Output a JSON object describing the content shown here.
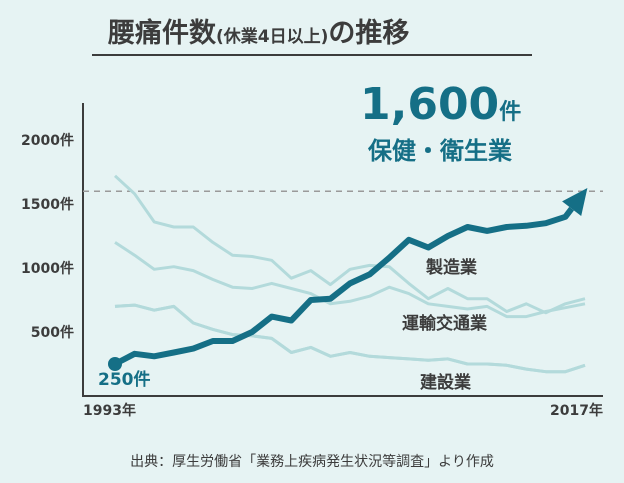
{
  "colors": {
    "background": "#e6f3f3",
    "highlight": "#156f86",
    "other_series": "#b3dadb",
    "axis": "#3c3c3c",
    "text": "#3c3c3c",
    "dash": "#9a9a9a",
    "title_underline": "#3c3c3c"
  },
  "header": {
    "title_main": "腰痛件数",
    "title_sub": "(休業4日以上)",
    "title_end": "の推移"
  },
  "highlight": {
    "value": "1,600",
    "unit": "件",
    "industry": "保健・衛生業",
    "start_label": "250件"
  },
  "footer": {
    "source": "出典：厚生労働省「業務上疾病発生状況等調査」より作成"
  },
  "chart_data": {
    "type": "line",
    "title": "腰痛件数(休業4日以上)の推移",
    "x": [
      1993,
      1994,
      1995,
      1996,
      1997,
      1998,
      1999,
      2000,
      2001,
      2002,
      2003,
      2004,
      2005,
      2006,
      2007,
      2008,
      2009,
      2010,
      2011,
      2012,
      2013,
      2014,
      2015,
      2016,
      2017
    ],
    "x_tick_labels": [
      "1993年",
      "2017年"
    ],
    "ylim": [
      0,
      2300
    ],
    "y_ticks": [
      500,
      1000,
      1500,
      2000
    ],
    "y_tick_labels": [
      "500件",
      "1000件",
      "1500件",
      "2000件"
    ],
    "reference_line": 1600,
    "grid": false,
    "series": [
      {
        "name": "保健・衛生業",
        "highlight": true,
        "values": [
          250,
          330,
          310,
          340,
          370,
          430,
          430,
          500,
          620,
          590,
          750,
          760,
          880,
          950,
          1080,
          1220,
          1160,
          1250,
          1320,
          1290,
          1320,
          1330,
          1350,
          1400,
          1600
        ]
      },
      {
        "name": "製造業",
        "values": [
          1720,
          1580,
          1360,
          1320,
          1320,
          1200,
          1100,
          1090,
          1060,
          920,
          980,
          870,
          990,
          1020,
          1010,
          880,
          760,
          840,
          760,
          760,
          660,
          720,
          650,
          720,
          760
        ]
      },
      {
        "name": "運輸交通業",
        "values": [
          1200,
          1100,
          990,
          1010,
          980,
          910,
          850,
          840,
          880,
          840,
          800,
          720,
          740,
          780,
          850,
          800,
          720,
          700,
          680,
          700,
          620,
          620,
          660,
          690,
          720
        ]
      },
      {
        "name": "",
        "values": [
          700,
          710,
          670,
          700,
          570,
          520,
          480,
          470,
          450,
          340,
          380,
          310,
          340,
          310,
          300,
          290,
          280,
          290,
          250,
          250,
          240,
          210,
          190,
          190,
          240
        ]
      },
      {
        "name": "建設業",
        "values": [
          700,
          710,
          670,
          700,
          570,
          520,
          480,
          470,
          450,
          340,
          380,
          310,
          340,
          310,
          300,
          290,
          280,
          290,
          250,
          250,
          240,
          210,
          190,
          190,
          240
        ]
      }
    ]
  }
}
